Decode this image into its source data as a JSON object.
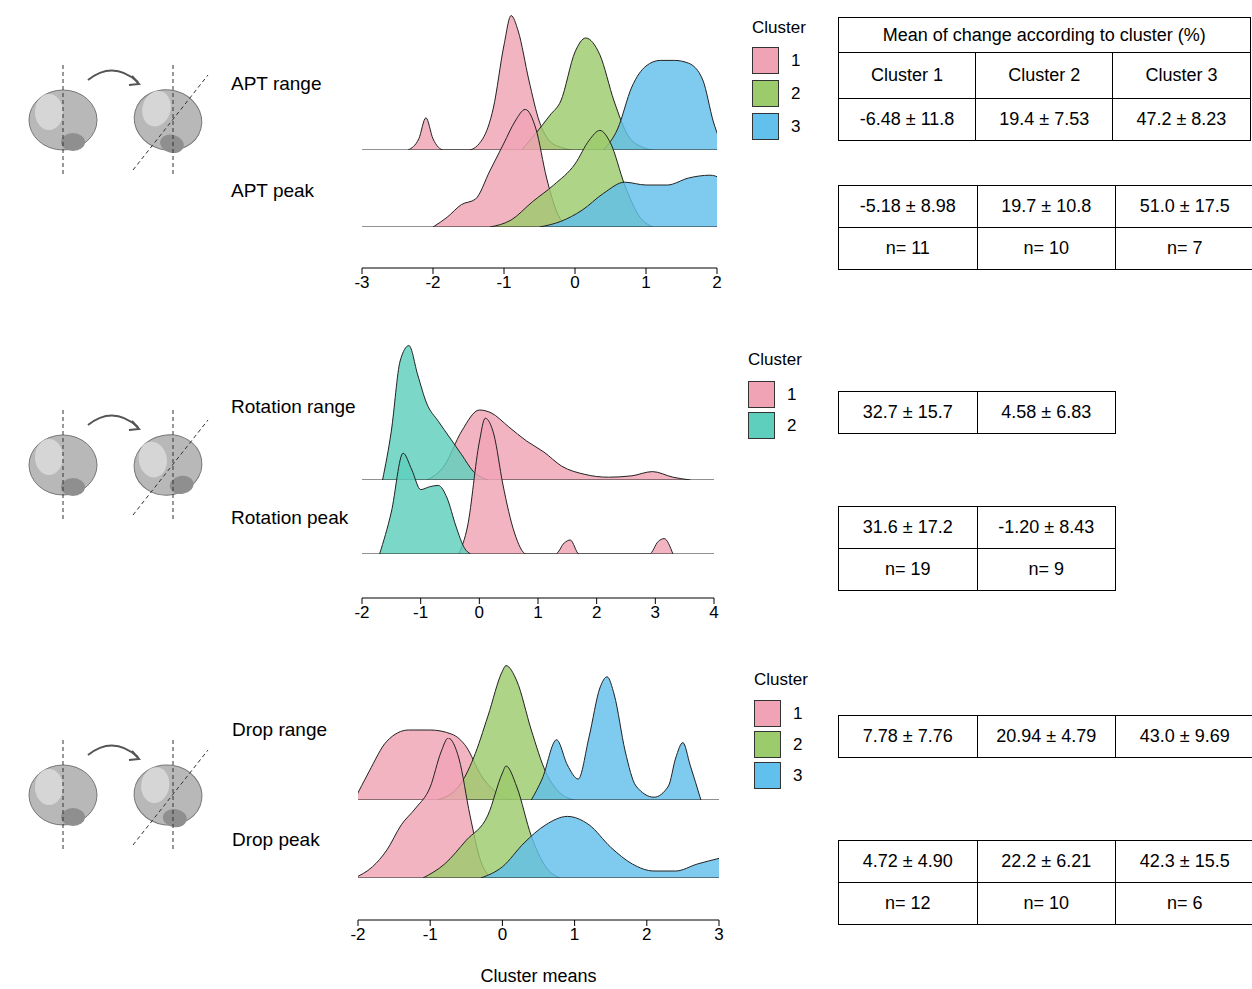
{
  "chart_data": [
    {
      "type": "area",
      "legend_title": "Cluster",
      "legend": "right",
      "tick_labels": "x",
      "xlim": [
        -3,
        2
      ],
      "xticks": [
        -3,
        -2,
        -1,
        0,
        1,
        2
      ],
      "ylim": [
        0,
        1
      ],
      "ridges": [
        {
          "name": "APT range",
          "series": [
            {
              "name": "1",
              "color": "#f0a3b5",
              "x": [
                -2.35,
                -2.2,
                -2.1,
                -2.0,
                -1.85,
                -1.5,
                -1.3,
                -1.15,
                -1.0,
                -0.9,
                -0.8,
                -0.65,
                -0.5,
                -0.35,
                -0.2,
                -0.05
              ],
              "values": [
                0,
                0.08,
                0.23,
                0.08,
                0,
                0,
                0.08,
                0.3,
                0.75,
                0.96,
                0.85,
                0.5,
                0.2,
                0.06,
                0.02,
                0
              ]
            },
            {
              "name": "2",
              "color": "#9ccb6c",
              "x": [
                -0.75,
                -0.55,
                -0.35,
                -0.2,
                0,
                0.15,
                0.35,
                0.55,
                0.75,
                0.95,
                1.1
              ],
              "values": [
                0,
                0.12,
                0.25,
                0.35,
                0.7,
                0.8,
                0.68,
                0.35,
                0.1,
                0.02,
                0
              ]
            },
            {
              "name": "3",
              "color": "#62c0ec",
              "x": [
                0.4,
                0.6,
                0.8,
                1.0,
                1.2,
                1.4,
                1.6,
                1.8,
                1.95,
                2.1
              ],
              "values": [
                0,
                0.15,
                0.45,
                0.6,
                0.64,
                0.64,
                0.62,
                0.5,
                0.2,
                0
              ]
            }
          ]
        },
        {
          "name": "APT peak",
          "series": [
            {
              "name": "1",
              "color": "#f0a3b5",
              "x": [
                -2.0,
                -1.8,
                -1.6,
                -1.4,
                -1.2,
                -1.0,
                -0.85,
                -0.7,
                -0.55,
                -0.4,
                -0.25,
                -0.1
              ],
              "values": [
                0,
                0.07,
                0.16,
                0.2,
                0.4,
                0.6,
                0.75,
                0.84,
                0.7,
                0.35,
                0.1,
                0
              ]
            },
            {
              "name": "2",
              "color": "#9ccb6c",
              "x": [
                -1.2,
                -0.9,
                -0.6,
                -0.3,
                0,
                0.2,
                0.35,
                0.5,
                0.7,
                0.9,
                1.1
              ],
              "values": [
                0,
                0.05,
                0.18,
                0.3,
                0.45,
                0.62,
                0.69,
                0.6,
                0.3,
                0.08,
                0
              ]
            },
            {
              "name": "3",
              "color": "#62c0ec",
              "x": [
                -0.5,
                -0.2,
                0.1,
                0.4,
                0.7,
                1.0,
                1.3,
                1.6,
                1.9,
                2.2
              ],
              "values": [
                0,
                0.04,
                0.12,
                0.24,
                0.32,
                0.3,
                0.3,
                0.35,
                0.37,
                0.3
              ]
            }
          ]
        }
      ]
    },
    {
      "type": "area",
      "legend_title": "Cluster",
      "legend": "right",
      "tick_labels": "x",
      "xlim": [
        -2,
        4
      ],
      "xticks": [
        -2,
        -1,
        0,
        1,
        2,
        3,
        4
      ],
      "ylim": [
        0,
        1
      ],
      "ridges": [
        {
          "name": "Rotation range",
          "series": [
            {
              "name": "1",
              "color": "#f0a3b5",
              "x": [
                -0.9,
                -0.6,
                -0.3,
                0,
                0.2,
                0.5,
                0.8,
                1.1,
                1.4,
                1.8,
                2.2,
                2.6,
                2.95,
                3.3,
                3.6
              ],
              "values": [
                0,
                0.1,
                0.35,
                0.5,
                0.48,
                0.38,
                0.28,
                0.2,
                0.1,
                0.04,
                0.02,
                0.03,
                0.06,
                0.02,
                0
              ]
            },
            {
              "name": "2",
              "color": "#5ecfbd",
              "x": [
                -1.65,
                -1.5,
                -1.35,
                -1.2,
                -1.05,
                -0.9,
                -0.7,
                -0.5,
                -0.3,
                -0.1,
                0.15
              ],
              "values": [
                0,
                0.35,
                0.85,
                0.96,
                0.75,
                0.55,
                0.42,
                0.3,
                0.18,
                0.06,
                0
              ]
            }
          ]
        },
        {
          "name": "Rotation peak",
          "series": [
            {
              "name": "1",
              "color": "#f0a3b5",
              "x": [
                -0.35,
                -0.2,
                0,
                0.1,
                0.25,
                0.4,
                0.6,
                0.8,
                1.3,
                1.45,
                1.55,
                1.7,
                2.9,
                3.05,
                3.15,
                3.3
              ],
              "values": [
                0,
                0.2,
                0.8,
                0.97,
                0.85,
                0.5,
                0.15,
                0,
                0,
                0.08,
                0.1,
                0,
                0,
                0.09,
                0.11,
                0
              ]
            },
            {
              "name": "2",
              "color": "#5ecfbd",
              "x": [
                -1.7,
                -1.5,
                -1.3,
                -1.15,
                -1.0,
                -0.85,
                -0.7,
                -0.55,
                -0.4,
                -0.25,
                -0.15
              ],
              "values": [
                0,
                0.3,
                0.72,
                0.6,
                0.46,
                0.48,
                0.49,
                0.4,
                0.2,
                0.04,
                0
              ]
            }
          ]
        }
      ]
    },
    {
      "type": "area",
      "legend_title": "Cluster",
      "legend": "right",
      "tick_labels": "x",
      "xlim": [
        -2,
        3
      ],
      "xticks": [
        -2,
        -1,
        0,
        1,
        2,
        3
      ],
      "ylim": [
        0,
        1
      ],
      "x_label": "Cluster means",
      "ridges": [
        {
          "name": "Drop range",
          "series": [
            {
              "name": "1",
              "color": "#f0a3b5",
              "x": [
                -2.05,
                -1.85,
                -1.6,
                -1.3,
                -1.0,
                -0.7,
                -0.5,
                -0.3,
                -0.1,
                0.15
              ],
              "values": [
                0,
                0.2,
                0.42,
                0.5,
                0.5,
                0.47,
                0.38,
                0.18,
                0.06,
                0
              ]
            },
            {
              "name": "2",
              "color": "#9ccb6c",
              "x": [
                -0.9,
                -0.6,
                -0.4,
                -0.2,
                0,
                0.05,
                0.2,
                0.4,
                0.6,
                0.8,
                1.0
              ],
              "values": [
                0,
                0.1,
                0.3,
                0.6,
                0.92,
                0.96,
                0.85,
                0.5,
                0.2,
                0.05,
                0
              ]
            },
            {
              "name": "3",
              "color": "#62c0ec",
              "x": [
                0.4,
                0.55,
                0.75,
                0.9,
                1.05,
                1.2,
                1.35,
                1.45,
                1.55,
                1.7,
                1.85,
                2.1,
                2.3,
                2.4,
                2.5,
                2.6,
                2.75
              ],
              "values": [
                0,
                0.15,
                0.43,
                0.25,
                0.15,
                0.45,
                0.8,
                0.88,
                0.75,
                0.35,
                0.1,
                0.02,
                0.1,
                0.3,
                0.41,
                0.25,
                0
              ]
            }
          ]
        },
        {
          "name": "Drop peak",
          "series": [
            {
              "name": "1",
              "color": "#f0a3b5",
              "x": [
                -2.05,
                -1.8,
                -1.6,
                -1.4,
                -1.2,
                -1.0,
                -0.85,
                -0.75,
                -0.6,
                -0.45,
                -0.3,
                -0.15
              ],
              "values": [
                0,
                0.08,
                0.2,
                0.38,
                0.5,
                0.65,
                0.9,
                1.0,
                0.85,
                0.45,
                0.12,
                0
              ]
            },
            {
              "name": "2",
              "color": "#9ccb6c",
              "x": [
                -1.1,
                -0.8,
                -0.5,
                -0.2,
                0,
                0.05,
                0.2,
                0.4,
                0.6,
                0.8
              ],
              "values": [
                0,
                0.1,
                0.27,
                0.45,
                0.75,
                0.8,
                0.65,
                0.3,
                0.08,
                0
              ]
            },
            {
              "name": "3",
              "color": "#62c0ec",
              "x": [
                -0.3,
                0,
                0.3,
                0.6,
                0.9,
                1.2,
                1.5,
                1.8,
                2.1,
                2.4,
                2.7,
                3.0
              ],
              "values": [
                0,
                0.08,
                0.25,
                0.38,
                0.44,
                0.38,
                0.22,
                0.1,
                0.05,
                0.05,
                0.1,
                0.14
              ]
            }
          ]
        }
      ]
    }
  ],
  "tables": [
    {
      "title": "Mean of change according to cluster (%)",
      "header": [
        "Cluster 1",
        "Cluster 2",
        "Cluster 3"
      ],
      "blocks": [
        [
          [
            "-6.48 ± 11.8",
            "19.4 ± 7.53",
            "47.2 ± 8.23"
          ]
        ],
        [
          [
            "-5.18 ± 8.98",
            "19.7 ± 10.8",
            "51.0 ± 17.5"
          ],
          [
            "n= 11",
            "n= 10",
            "n= 7"
          ]
        ]
      ]
    },
    {
      "blocks": [
        [
          [
            "32.7 ± 15.7",
            "4.58 ± 6.83"
          ]
        ],
        [
          [
            "31.6 ± 17.2",
            "-1.20 ± 8.43"
          ],
          [
            "n= 19",
            "n= 9"
          ]
        ]
      ]
    },
    {
      "blocks": [
        [
          [
            "7.78 ± 7.76",
            "20.94 ± 4.79",
            "43.0 ± 9.69"
          ]
        ],
        [
          [
            "4.72 ± 4.90",
            "22.2 ± 6.21",
            "42.3 ± 15.5"
          ],
          [
            "n= 12",
            "n= 10",
            "n= 6"
          ]
        ]
      ]
    }
  ]
}
